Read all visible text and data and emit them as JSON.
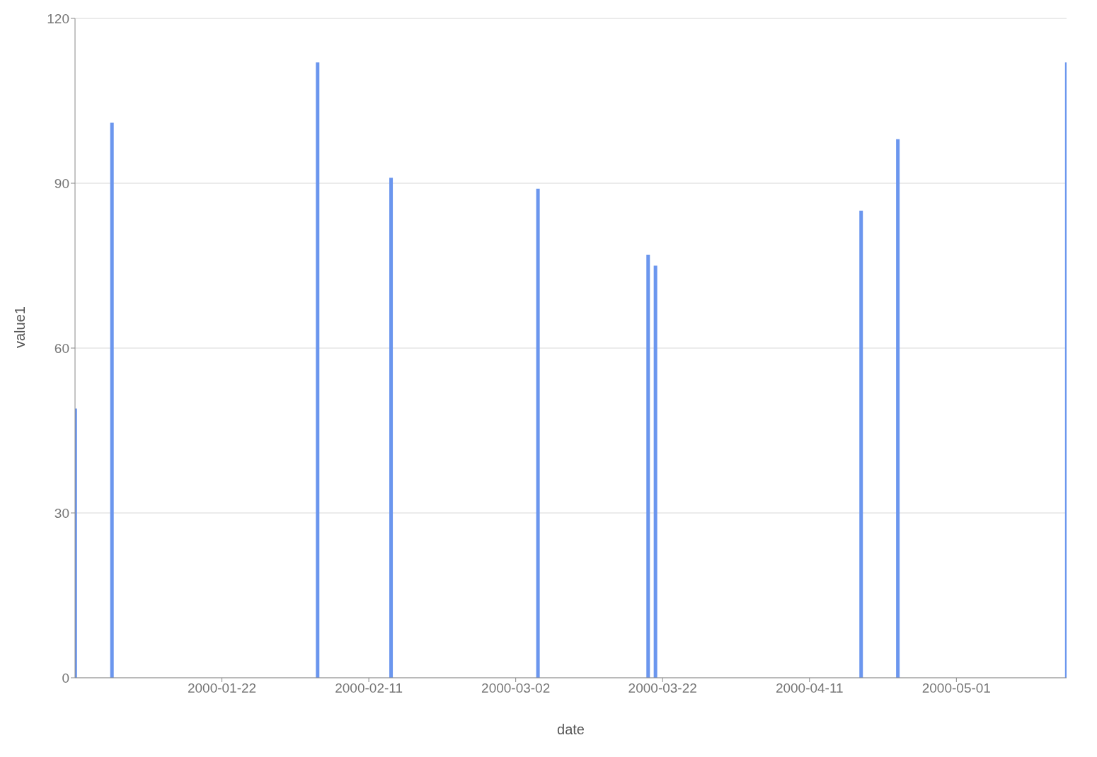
{
  "chart_data": {
    "type": "bar",
    "xlabel": "date",
    "ylabel": "value1",
    "x": [
      "2000-01-02",
      "2000-01-07",
      "2000-02-04",
      "2000-02-14",
      "2000-03-05",
      "2000-03-20",
      "2000-03-21",
      "2000-04-18",
      "2000-04-23",
      "2000-05-16"
    ],
    "values": [
      49,
      101,
      112,
      91,
      89,
      77,
      75,
      85,
      98,
      112
    ],
    "color": "#6b96ee",
    "xlim": [
      "2000-01-02",
      "2000-05-16"
    ],
    "xticks": [
      "2000-01-22",
      "2000-02-11",
      "2000-03-02",
      "2000-03-22",
      "2000-04-11",
      "2000-05-01"
    ],
    "ylim": [
      0,
      120
    ],
    "yticks": [
      0,
      30,
      60,
      90,
      120
    ],
    "grid": "y",
    "legend": false
  }
}
